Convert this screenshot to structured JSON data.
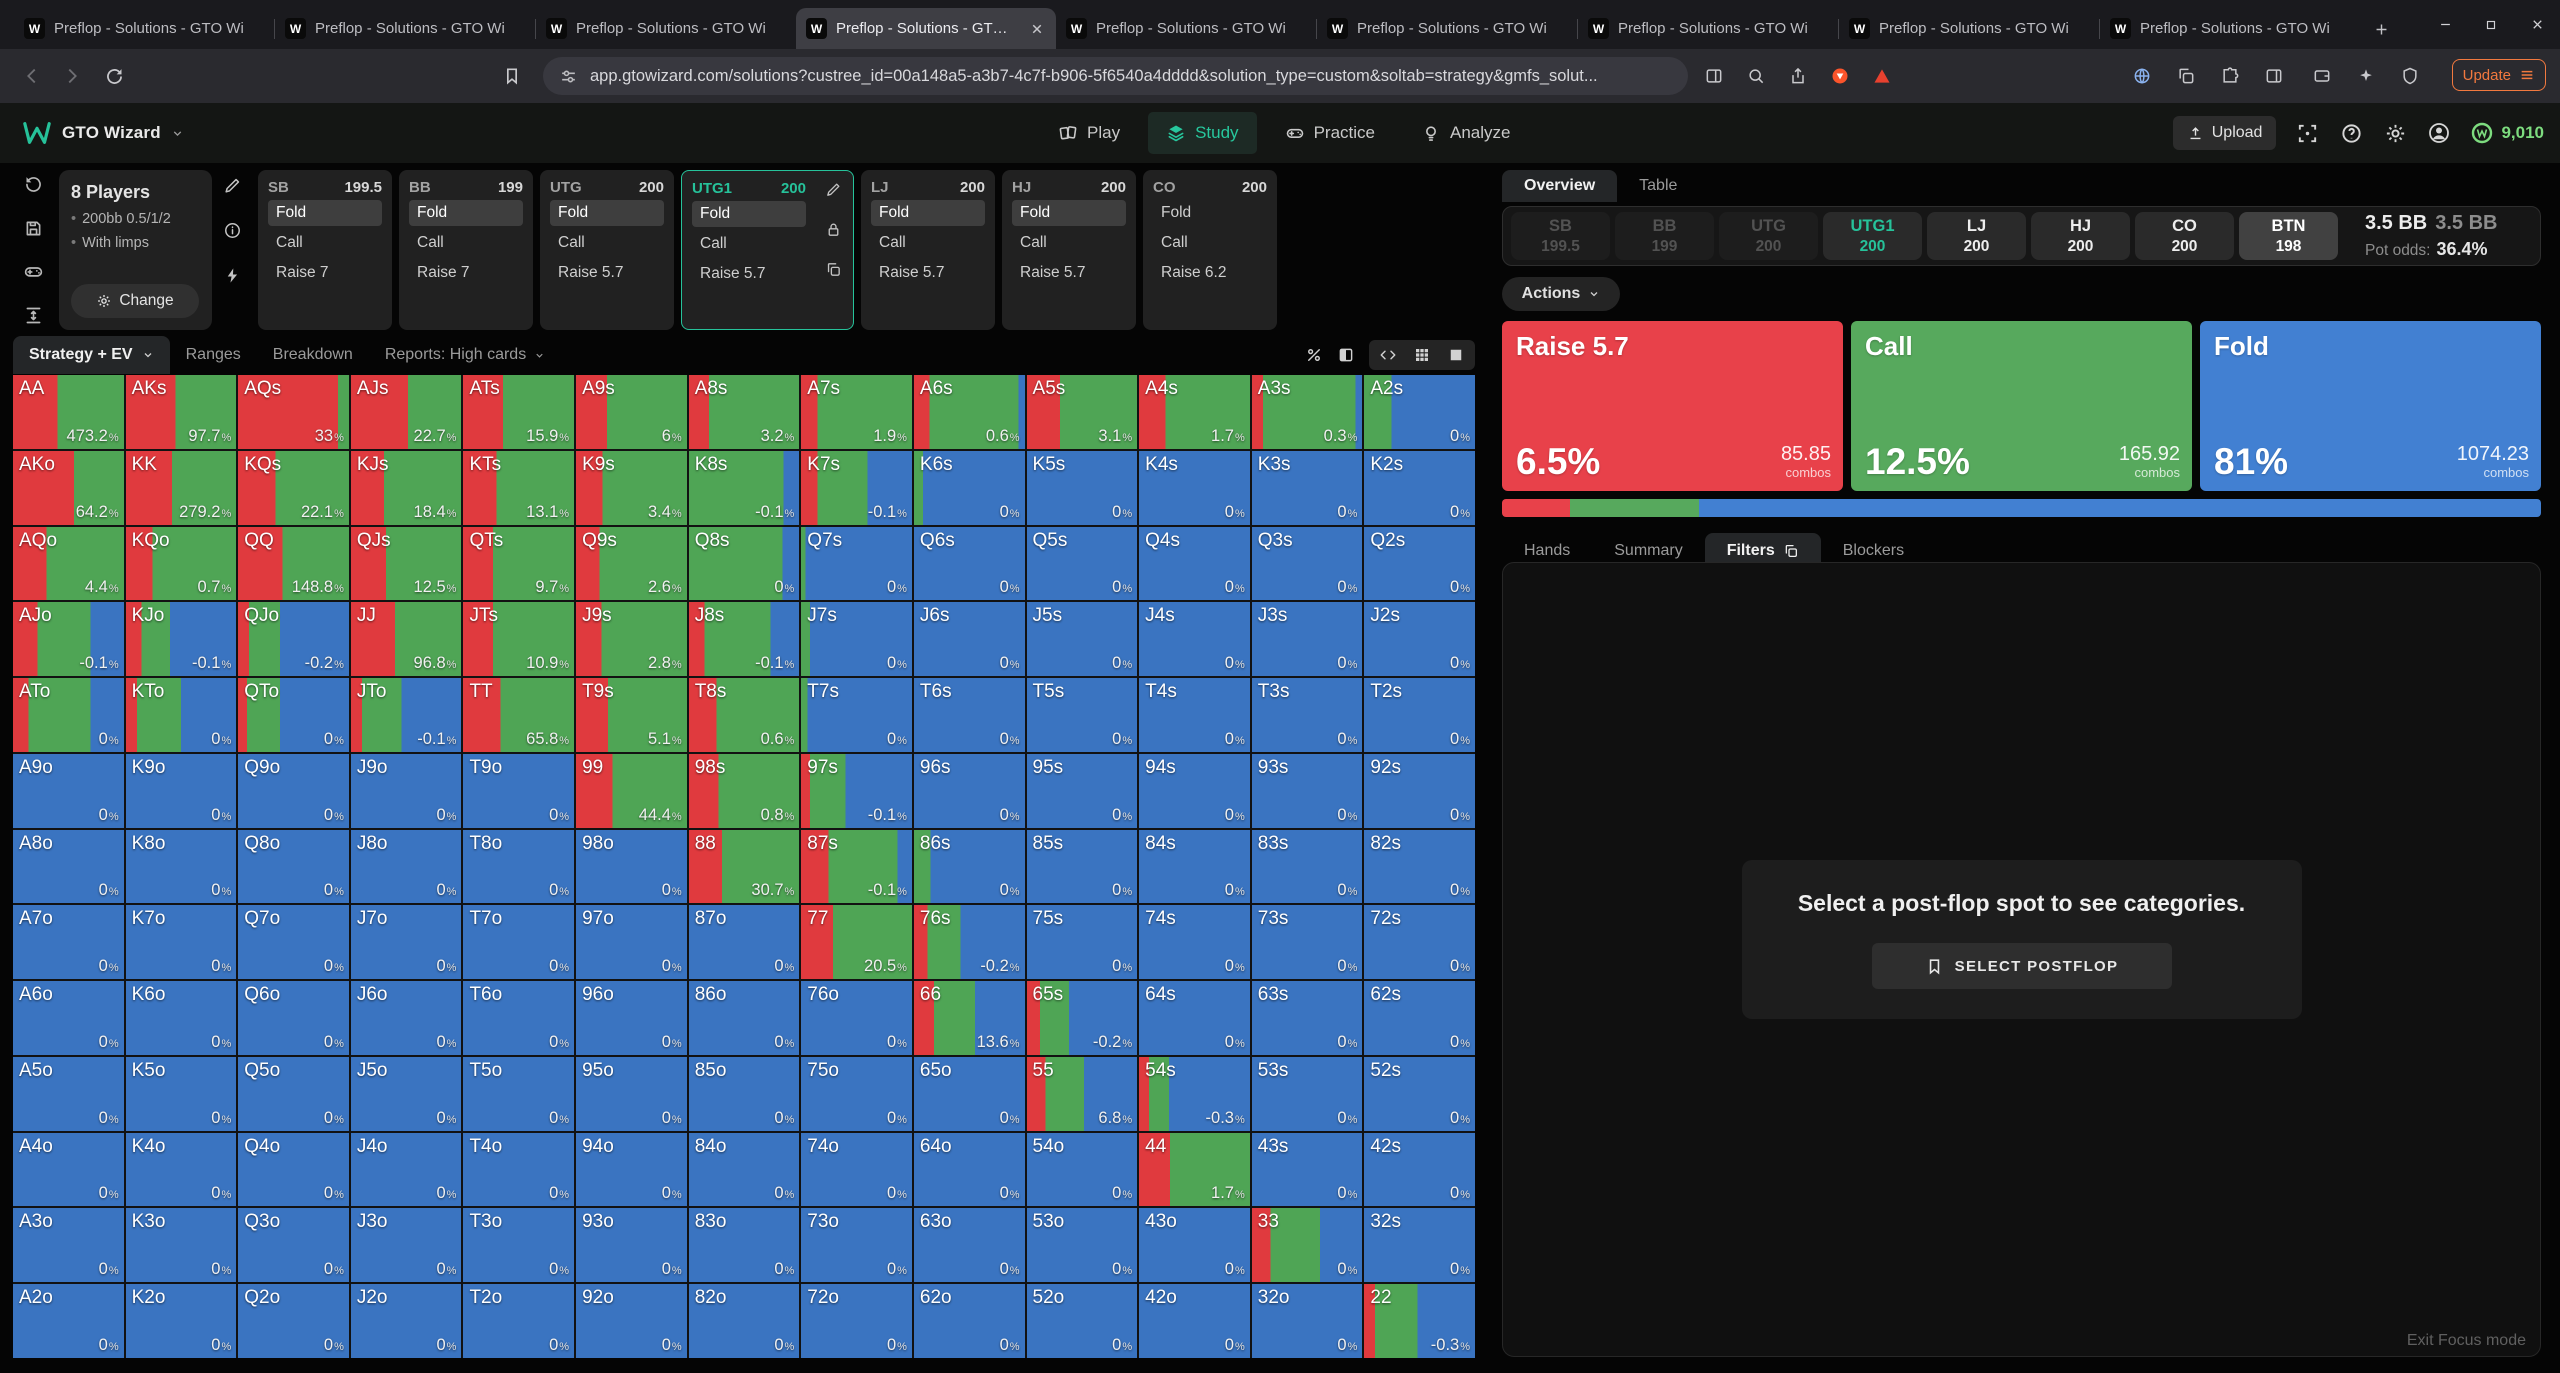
{
  "colors": {
    "accent": "#26c29a",
    "matrix_raise": "#e03a3e",
    "matrix_call": "#4fa555",
    "matrix_fold": "#3a74c1",
    "card_raise": "#e8414a",
    "card_call": "#57a95d",
    "card_fold": "#4280d2",
    "coins": "#7ddc7f",
    "update": "#f2793f"
  },
  "window": {
    "tab_title": "Preflop - Solutions - GTO Wi",
    "tab_count": 9,
    "active_tab_index": 3,
    "url": "app.gtowizard.com/solutions?custree_id=00a148a5-a3b7-4c7f-b906-5f6540a4dddd&solution_type=custom&soltab=strategy&gmfs_solut...",
    "update_label": "Update",
    "toolbar_icons_left": [
      "back-icon",
      "forward-icon",
      "reload-icon"
    ],
    "bookmark_icon": "bookmark-icon",
    "url_icons_after": [
      "reader-icon",
      "zoom-icon",
      "share-icon",
      "brave-lion-icon",
      "warning-triangle-icon"
    ],
    "toolbar_icons_right": [
      "globe-icon",
      "copy-icon",
      "puzzle-icon",
      "sidebar-icon",
      "wallet-icon",
      "sparkle-icon",
      "shield-icon"
    ]
  },
  "header": {
    "brand": "GTO Wizard",
    "nav": [
      {
        "label": "Play",
        "icon": "cards-icon",
        "active": false
      },
      {
        "label": "Study",
        "icon": "layers-icon",
        "active": true
      },
      {
        "label": "Practice",
        "icon": "gamepad-icon",
        "active": false
      },
      {
        "label": "Analyze",
        "icon": "bulb-icon",
        "active": false
      }
    ],
    "upload_label": "Upload",
    "right_icons": [
      "focus-icon",
      "help-icon",
      "gear-icon",
      "avatar-icon"
    ],
    "coins": "9,010"
  },
  "config": {
    "rail_icons": [
      "reset-icon",
      "save-icon",
      "gamepad-icon",
      "height-icon"
    ],
    "players": {
      "title": "8 Players",
      "bullets": [
        "200bb 0.5/1/2",
        "With limps"
      ],
      "change_label": "Change"
    },
    "tool_icons": [
      "pencil-icon",
      "info-icon",
      "bolt-icon"
    ],
    "positions": [
      {
        "pos": "SB",
        "stack": "199.5",
        "actions": [
          "Fold",
          "Call",
          "Raise 7"
        ],
        "highlight": "Fold",
        "selected": false
      },
      {
        "pos": "BB",
        "stack": "199",
        "actions": [
          "Fold",
          "Call",
          "Raise 7"
        ],
        "highlight": "Fold",
        "selected": false
      },
      {
        "pos": "UTG",
        "stack": "200",
        "actions": [
          "Fold",
          "Call",
          "Raise 5.7"
        ],
        "highlight": "Fold",
        "selected": false
      },
      {
        "pos": "UTG1",
        "stack": "200",
        "actions": [
          "Fold",
          "Call",
          "Raise 5.7"
        ],
        "highlight": "Fold",
        "selected": true,
        "side_icons": [
          "pencil-icon",
          "lock-icon",
          "copy-icon"
        ]
      },
      {
        "pos": "LJ",
        "stack": "200",
        "actions": [
          "Fold",
          "Call",
          "Raise 5.7"
        ],
        "highlight": "Fold",
        "selected": false
      },
      {
        "pos": "HJ",
        "stack": "200",
        "actions": [
          "Fold",
          "Call",
          "Raise 5.7"
        ],
        "highlight": "Fold",
        "selected": false
      },
      {
        "pos": "CO",
        "stack": "200",
        "actions": [
          "Fold",
          "Call",
          "Raise 6.2"
        ],
        "highlight": null,
        "selected": false
      }
    ]
  },
  "matrix_bar": {
    "view_tab": "Strategy + EV",
    "tabs": [
      "Ranges",
      "Breakdown"
    ],
    "reports": "Reports: High cards",
    "icons": [
      "percent-icon",
      "contrast-icon",
      "expand-icon",
      "grid-icon",
      "square-icon"
    ]
  },
  "matrix": {
    "note_format": [
      "hand",
      "ev_percent",
      "raise_pct",
      "call_pct"
    ],
    "cells": [
      [
        "AA",
        "473.2",
        40,
        60
      ],
      [
        "AKs",
        "97.7",
        45,
        55
      ],
      [
        "AQs",
        "33",
        90,
        10
      ],
      [
        "AJs",
        "22.7",
        52,
        48
      ],
      [
        "ATs",
        "15.9",
        36,
        64
      ],
      [
        "A9s",
        "6",
        28,
        72
      ],
      [
        "A8s",
        "3.2",
        18,
        82
      ],
      [
        "A7s",
        "1.9",
        15,
        85
      ],
      [
        "A6s",
        "0.6",
        14,
        80
      ],
      [
        "A5s",
        "3.1",
        30,
        70
      ],
      [
        "A4s",
        "1.7",
        24,
        76
      ],
      [
        "A3s",
        "0.3",
        10,
        84
      ],
      [
        "A2s",
        "0",
        0,
        25
      ],
      [
        "AKo",
        "64.2",
        55,
        45
      ],
      [
        "KK",
        "279.2",
        42,
        58
      ],
      [
        "KQs",
        "22.1",
        34,
        66
      ],
      [
        "KJs",
        "18.4",
        30,
        70
      ],
      [
        "KTs",
        "13.1",
        30,
        70
      ],
      [
        "K9s",
        "3.4",
        24,
        76
      ],
      [
        "K8s",
        "-0.1",
        0,
        86
      ],
      [
        "K7s",
        "-0.1",
        15,
        45
      ],
      [
        "K6s",
        "0",
        0,
        8
      ],
      [
        "K5s",
        "0",
        0,
        0
      ],
      [
        "K4s",
        "0",
        0,
        0
      ],
      [
        "K3s",
        "0",
        0,
        0
      ],
      [
        "K2s",
        "0",
        0,
        0
      ],
      [
        "AQo",
        "4.4",
        30,
        70
      ],
      [
        "KQo",
        "0.7",
        24,
        76
      ],
      [
        "QQ",
        "148.8",
        40,
        60
      ],
      [
        "QJs",
        "12.5",
        32,
        68
      ],
      [
        "QTs",
        "9.7",
        27,
        73
      ],
      [
        "Q9s",
        "2.6",
        21,
        79
      ],
      [
        "Q8s",
        "0",
        0,
        85
      ],
      [
        "Q7s",
        "0",
        0,
        4
      ],
      [
        "Q6s",
        "0",
        0,
        0
      ],
      [
        "Q5s",
        "0",
        0,
        0
      ],
      [
        "Q4s",
        "0",
        0,
        0
      ],
      [
        "Q3s",
        "0",
        0,
        0
      ],
      [
        "Q2s",
        "0",
        0,
        0
      ],
      [
        "AJo",
        "-0.1",
        22,
        48
      ],
      [
        "KJo",
        "-0.1",
        14,
        26
      ],
      [
        "QJo",
        "-0.2",
        10,
        28
      ],
      [
        "JJ",
        "96.8",
        40,
        60
      ],
      [
        "JTs",
        "10.9",
        27,
        73
      ],
      [
        "J9s",
        "2.8",
        23,
        77
      ],
      [
        "J8s",
        "-0.1",
        14,
        60
      ],
      [
        "J7s",
        "0",
        0,
        8
      ],
      [
        "J6s",
        "0",
        0,
        0
      ],
      [
        "J5s",
        "0",
        0,
        0
      ],
      [
        "J4s",
        "0",
        0,
        0
      ],
      [
        "J3s",
        "0",
        0,
        0
      ],
      [
        "J2s",
        "0",
        0,
        0
      ],
      [
        "ATo",
        "0",
        14,
        56
      ],
      [
        "KTo",
        "0",
        10,
        40
      ],
      [
        "QTo",
        "0",
        8,
        30
      ],
      [
        "JTo",
        "-0.1",
        10,
        36
      ],
      [
        "TT",
        "65.8",
        34,
        66
      ],
      [
        "T9s",
        "5.1",
        29,
        71
      ],
      [
        "T8s",
        "0.6",
        25,
        75
      ],
      [
        "T7s",
        "0",
        0,
        6
      ],
      [
        "T6s",
        "0",
        0,
        0
      ],
      [
        "T5s",
        "0",
        0,
        0
      ],
      [
        "T4s",
        "0",
        0,
        0
      ],
      [
        "T3s",
        "0",
        0,
        0
      ],
      [
        "T2s",
        "0",
        0,
        0
      ],
      [
        "A9o",
        "0",
        0,
        0
      ],
      [
        "K9o",
        "0",
        0,
        0
      ],
      [
        "Q9o",
        "0",
        0,
        0
      ],
      [
        "J9o",
        "0",
        0,
        0
      ],
      [
        "T9o",
        "0",
        0,
        0
      ],
      [
        "99",
        "44.4",
        33,
        67
      ],
      [
        "98s",
        "0.8",
        27,
        73
      ],
      [
        "97s",
        "-0.1",
        8,
        32
      ],
      [
        "96s",
        "0",
        0,
        0
      ],
      [
        "95s",
        "0",
        0,
        0
      ],
      [
        "94s",
        "0",
        0,
        0
      ],
      [
        "93s",
        "0",
        0,
        0
      ],
      [
        "92s",
        "0",
        0,
        0
      ],
      [
        "A8o",
        "0",
        0,
        0
      ],
      [
        "K8o",
        "0",
        0,
        0
      ],
      [
        "Q8o",
        "0",
        0,
        0
      ],
      [
        "J8o",
        "0",
        0,
        0
      ],
      [
        "T8o",
        "0",
        0,
        0
      ],
      [
        "98o",
        "0",
        0,
        0
      ],
      [
        "88",
        "30.7",
        30,
        70
      ],
      [
        "87s",
        "-0.1",
        25,
        62
      ],
      [
        "86s",
        "0",
        0,
        15
      ],
      [
        "85s",
        "0",
        0,
        0
      ],
      [
        "84s",
        "0",
        0,
        0
      ],
      [
        "83s",
        "0",
        0,
        0
      ],
      [
        "82s",
        "0",
        0,
        0
      ],
      [
        "A7o",
        "0",
        0,
        0
      ],
      [
        "K7o",
        "0",
        0,
        0
      ],
      [
        "Q7o",
        "0",
        0,
        0
      ],
      [
        "J7o",
        "0",
        0,
        0
      ],
      [
        "T7o",
        "0",
        0,
        0
      ],
      [
        "97o",
        "0",
        0,
        0
      ],
      [
        "87o",
        "0",
        0,
        0
      ],
      [
        "77",
        "20.5",
        29,
        71
      ],
      [
        "76s",
        "-0.2",
        12,
        30
      ],
      [
        "75s",
        "0",
        0,
        0
      ],
      [
        "74s",
        "0",
        0,
        0
      ],
      [
        "73s",
        "0",
        0,
        0
      ],
      [
        "72s",
        "0",
        0,
        0
      ],
      [
        "A6o",
        "0",
        0,
        0
      ],
      [
        "K6o",
        "0",
        0,
        0
      ],
      [
        "Q6o",
        "0",
        0,
        0
      ],
      [
        "J6o",
        "0",
        0,
        0
      ],
      [
        "T6o",
        "0",
        0,
        0
      ],
      [
        "96o",
        "0",
        0,
        0
      ],
      [
        "86o",
        "0",
        0,
        0
      ],
      [
        "76o",
        "0",
        0,
        0
      ],
      [
        "66",
        "13.6",
        18,
        37
      ],
      [
        "65s",
        "-0.2",
        12,
        26
      ],
      [
        "64s",
        "0",
        0,
        0
      ],
      [
        "63s",
        "0",
        0,
        0
      ],
      [
        "62s",
        "0",
        0,
        0
      ],
      [
        "A5o",
        "0",
        0,
        0
      ],
      [
        "K5o",
        "0",
        0,
        0
      ],
      [
        "Q5o",
        "0",
        0,
        0
      ],
      [
        "J5o",
        "0",
        0,
        0
      ],
      [
        "T5o",
        "0",
        0,
        0
      ],
      [
        "95o",
        "0",
        0,
        0
      ],
      [
        "85o",
        "0",
        0,
        0
      ],
      [
        "75o",
        "0",
        0,
        0
      ],
      [
        "65o",
        "0",
        0,
        0
      ],
      [
        "55",
        "6.8",
        17,
        35
      ],
      [
        "54s",
        "-0.3",
        9,
        18
      ],
      [
        "53s",
        "0",
        0,
        0
      ],
      [
        "52s",
        "0",
        0,
        0
      ],
      [
        "A4o",
        "0",
        0,
        0
      ],
      [
        "K4o",
        "0",
        0,
        0
      ],
      [
        "Q4o",
        "0",
        0,
        0
      ],
      [
        "J4o",
        "0",
        0,
        0
      ],
      [
        "T4o",
        "0",
        0,
        0
      ],
      [
        "94o",
        "0",
        0,
        0
      ],
      [
        "84o",
        "0",
        0,
        0
      ],
      [
        "74o",
        "0",
        0,
        0
      ],
      [
        "64o",
        "0",
        0,
        0
      ],
      [
        "54o",
        "0",
        0,
        0
      ],
      [
        "44",
        "1.7",
        28,
        72
      ],
      [
        "43s",
        "0",
        0,
        0
      ],
      [
        "42s",
        "0",
        0,
        0
      ],
      [
        "A3o",
        "0",
        0,
        0
      ],
      [
        "K3o",
        "0",
        0,
        0
      ],
      [
        "Q3o",
        "0",
        0,
        0
      ],
      [
        "J3o",
        "0",
        0,
        0
      ],
      [
        "T3o",
        "0",
        0,
        0
      ],
      [
        "93o",
        "0",
        0,
        0
      ],
      [
        "83o",
        "0",
        0,
        0
      ],
      [
        "73o",
        "0",
        0,
        0
      ],
      [
        "63o",
        "0",
        0,
        0
      ],
      [
        "53o",
        "0",
        0,
        0
      ],
      [
        "43o",
        "0",
        0,
        0
      ],
      [
        "33",
        "0",
        17,
        45
      ],
      [
        "32s",
        "0",
        0,
        0
      ],
      [
        "A2o",
        "0",
        0,
        0
      ],
      [
        "K2o",
        "0",
        0,
        0
      ],
      [
        "Q2o",
        "0",
        0,
        0
      ],
      [
        "J2o",
        "0",
        0,
        0
      ],
      [
        "T2o",
        "0",
        0,
        0
      ],
      [
        "92o",
        "0",
        0,
        0
      ],
      [
        "82o",
        "0",
        0,
        0
      ],
      [
        "72o",
        "0",
        0,
        0
      ],
      [
        "62o",
        "0",
        0,
        0
      ],
      [
        "52o",
        "0",
        0,
        0
      ],
      [
        "42o",
        "0",
        0,
        0
      ],
      [
        "32o",
        "0",
        0,
        0
      ],
      [
        "22",
        "-0.3",
        10,
        38
      ]
    ]
  },
  "overview": {
    "tabs": [
      {
        "label": "Overview",
        "active": true
      },
      {
        "label": "Table",
        "active": false
      }
    ],
    "seats": [
      {
        "pos": "SB",
        "stack": "199.5",
        "state": "folded"
      },
      {
        "pos": "BB",
        "stack": "199",
        "state": "folded"
      },
      {
        "pos": "UTG",
        "stack": "200",
        "state": "folded"
      },
      {
        "pos": "UTG1",
        "stack": "200",
        "state": "active"
      },
      {
        "pos": "LJ",
        "stack": "200",
        "state": "normal"
      },
      {
        "pos": "HJ",
        "stack": "200",
        "state": "normal"
      },
      {
        "pos": "CO",
        "stack": "200",
        "state": "normal"
      },
      {
        "pos": "BTN",
        "stack": "198",
        "state": "highlight"
      }
    ],
    "pot": {
      "value": "3.5 BB",
      "value_secondary": "3.5 BB",
      "pot_odds_label": "Pot odds:",
      "pot_odds": "36.4%"
    },
    "actions_label": "Actions",
    "action_cards": [
      {
        "label": "Raise 5.7",
        "pct": "6.5%",
        "combos": "85.85",
        "color": "#e8414a"
      },
      {
        "label": "Call",
        "pct": "12.5%",
        "combos": "165.92",
        "color": "#57a95d"
      },
      {
        "label": "Fold",
        "pct": "81%",
        "combos": "1074.23",
        "color": "#4280d2"
      }
    ],
    "combos_label": "combos",
    "strategy_bar": [
      {
        "pct": 6.5,
        "color": "#e8414a"
      },
      {
        "pct": 12.5,
        "color": "#57a95d"
      },
      {
        "pct": 81,
        "color": "#4280d2"
      }
    ],
    "sub_tabs": [
      {
        "label": "Hands",
        "active": false
      },
      {
        "label": "Summary",
        "active": false
      },
      {
        "label": "Filters",
        "active": true,
        "icon": "copy-icon"
      },
      {
        "label": "Blockers",
        "active": false
      }
    ],
    "empty_state": {
      "message": "Select a post-flop spot to see categories.",
      "button": "SELECT POSTFLOP",
      "button_icon": "bookmark-icon"
    },
    "exit_focus": "Exit Focus mode"
  }
}
